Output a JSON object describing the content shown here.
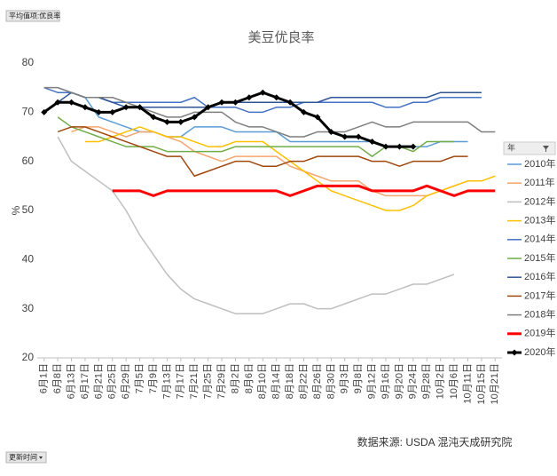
{
  "chart_data": {
    "type": "line",
    "title": "美豆优良率",
    "field_button": "平均值项:优良率",
    "update_button": "更新时间",
    "ylabel": "%",
    "source": "数据来源: USDA 混沌天成研究院",
    "legend_title": "年",
    "legend": "right",
    "grid": false,
    "categories": [
      "6月1日",
      "6月8日",
      "6月13日",
      "6月17日",
      "6月21日",
      "6月25日",
      "6月29日",
      "7月5日",
      "7月9日",
      "7月13日",
      "7月17日",
      "7月21日",
      "7月25日",
      "7月29日",
      "8月2日",
      "8月6日",
      "8月10日",
      "8月14日",
      "8月18日",
      "8月22日",
      "8月26日",
      "8月30日",
      "9月3日",
      "9月8日",
      "9月12日",
      "9月16日",
      "9月20日",
      "9月24日",
      "9月28日",
      "10月2日",
      "10月6日",
      "10月11日",
      "10月15日",
      "10月21日"
    ],
    "ylim": [
      20,
      80
    ],
    "yticks": [
      20,
      30,
      40,
      50,
      60,
      70,
      80
    ],
    "series": [
      {
        "name": "2010年",
        "color": "#5b9bd5",
        "values": [
          null,
          75,
          74,
          73,
          69,
          68,
          67,
          66,
          66,
          65,
          65,
          67,
          67,
          67,
          66,
          66,
          66,
          66,
          64,
          64,
          64,
          64,
          64,
          64,
          64,
          63,
          63,
          63,
          63,
          64,
          64,
          64,
          null,
          null
        ]
      },
      {
        "name": "2011年",
        "color": "#f4a66e",
        "values": [
          null,
          null,
          66,
          67,
          67,
          66,
          65,
          66,
          66,
          65,
          64,
          62,
          61,
          60,
          61,
          61,
          61,
          61,
          59,
          58,
          57,
          56,
          56,
          56,
          54,
          53,
          53,
          53,
          53,
          54,
          55,
          56,
          null,
          null
        ]
      },
      {
        "name": "2012年",
        "color": "#bfbfbf",
        "values": [
          null,
          65,
          60,
          58,
          56,
          54,
          50,
          45,
          41,
          37,
          34,
          32,
          31,
          30,
          29,
          29,
          29,
          30,
          31,
          31,
          30,
          30,
          31,
          32,
          33,
          33,
          34,
          35,
          35,
          36,
          37,
          null,
          null,
          null
        ]
      },
      {
        "name": "2013年",
        "color": "#ffc000",
        "values": [
          null,
          null,
          null,
          64,
          64,
          65,
          66,
          67,
          66,
          65,
          65,
          64,
          63,
          63,
          64,
          64,
          64,
          62,
          60,
          58,
          56,
          54,
          53,
          52,
          51,
          50,
          50,
          51,
          53,
          54,
          55,
          56,
          56,
          57
        ]
      },
      {
        "name": "2014年",
        "color": "#4472c4",
        "values": [
          75,
          74,
          74,
          73,
          73,
          72,
          72,
          72,
          72,
          72,
          72,
          73,
          71,
          71,
          71,
          70,
          70,
          71,
          71,
          72,
          72,
          72,
          72,
          72,
          72,
          71,
          71,
          72,
          72,
          73,
          73,
          73,
          73,
          null
        ]
      },
      {
        "name": "2015年",
        "color": "#70ad47",
        "values": [
          null,
          69,
          67,
          66,
          65,
          64,
          63,
          63,
          63,
          62,
          62,
          62,
          62,
          62,
          63,
          63,
          63,
          63,
          63,
          63,
          63,
          63,
          63,
          63,
          61,
          63,
          63,
          62,
          64,
          64,
          64,
          null,
          null,
          null
        ]
      },
      {
        "name": "2016年",
        "color": "#2f5597",
        "values": [
          null,
          72,
          74,
          73,
          73,
          72,
          71,
          71,
          71,
          71,
          71,
          71,
          71,
          72,
          72,
          72,
          72,
          72,
          72,
          72,
          72,
          73,
          73,
          73,
          73,
          73,
          73,
          73,
          73,
          74,
          74,
          74,
          74,
          null
        ]
      },
      {
        "name": "2017年",
        "color": "#9e480e",
        "values": [
          null,
          66,
          67,
          67,
          66,
          65,
          64,
          63,
          62,
          61,
          61,
          57,
          58,
          59,
          60,
          60,
          59,
          59,
          60,
          60,
          61,
          61,
          61,
          61,
          60,
          60,
          59,
          60,
          60,
          60,
          61,
          61,
          null,
          null
        ]
      },
      {
        "name": "2018年",
        "color": "#7f7f7f",
        "values": [
          75,
          75,
          74,
          73,
          73,
          73,
          72,
          71,
          70,
          69,
          69,
          70,
          70,
          70,
          68,
          67,
          67,
          66,
          65,
          65,
          66,
          66,
          66,
          67,
          68,
          67,
          67,
          68,
          68,
          68,
          68,
          68,
          66,
          66
        ]
      },
      {
        "name": "2019年",
        "color": "#ff0000",
        "line_width": 3,
        "values": [
          null,
          null,
          null,
          null,
          null,
          54,
          54,
          54,
          53,
          54,
          54,
          54,
          54,
          54,
          54,
          54,
          54,
          54,
          53,
          54,
          55,
          55,
          55,
          55,
          54,
          54,
          54,
          54,
          55,
          54,
          53,
          54,
          54,
          54
        ]
      },
      {
        "name": "2020年",
        "color": "#000000",
        "line_width": 3,
        "marker": "diamond",
        "values": [
          70,
          72,
          72,
          71,
          70,
          70,
          71,
          71,
          69,
          68,
          68,
          69,
          71,
          72,
          72,
          73,
          74,
          73,
          72,
          70,
          69,
          66,
          65,
          65,
          64,
          63,
          63,
          63,
          null,
          null,
          null,
          null,
          null,
          null
        ]
      }
    ]
  }
}
